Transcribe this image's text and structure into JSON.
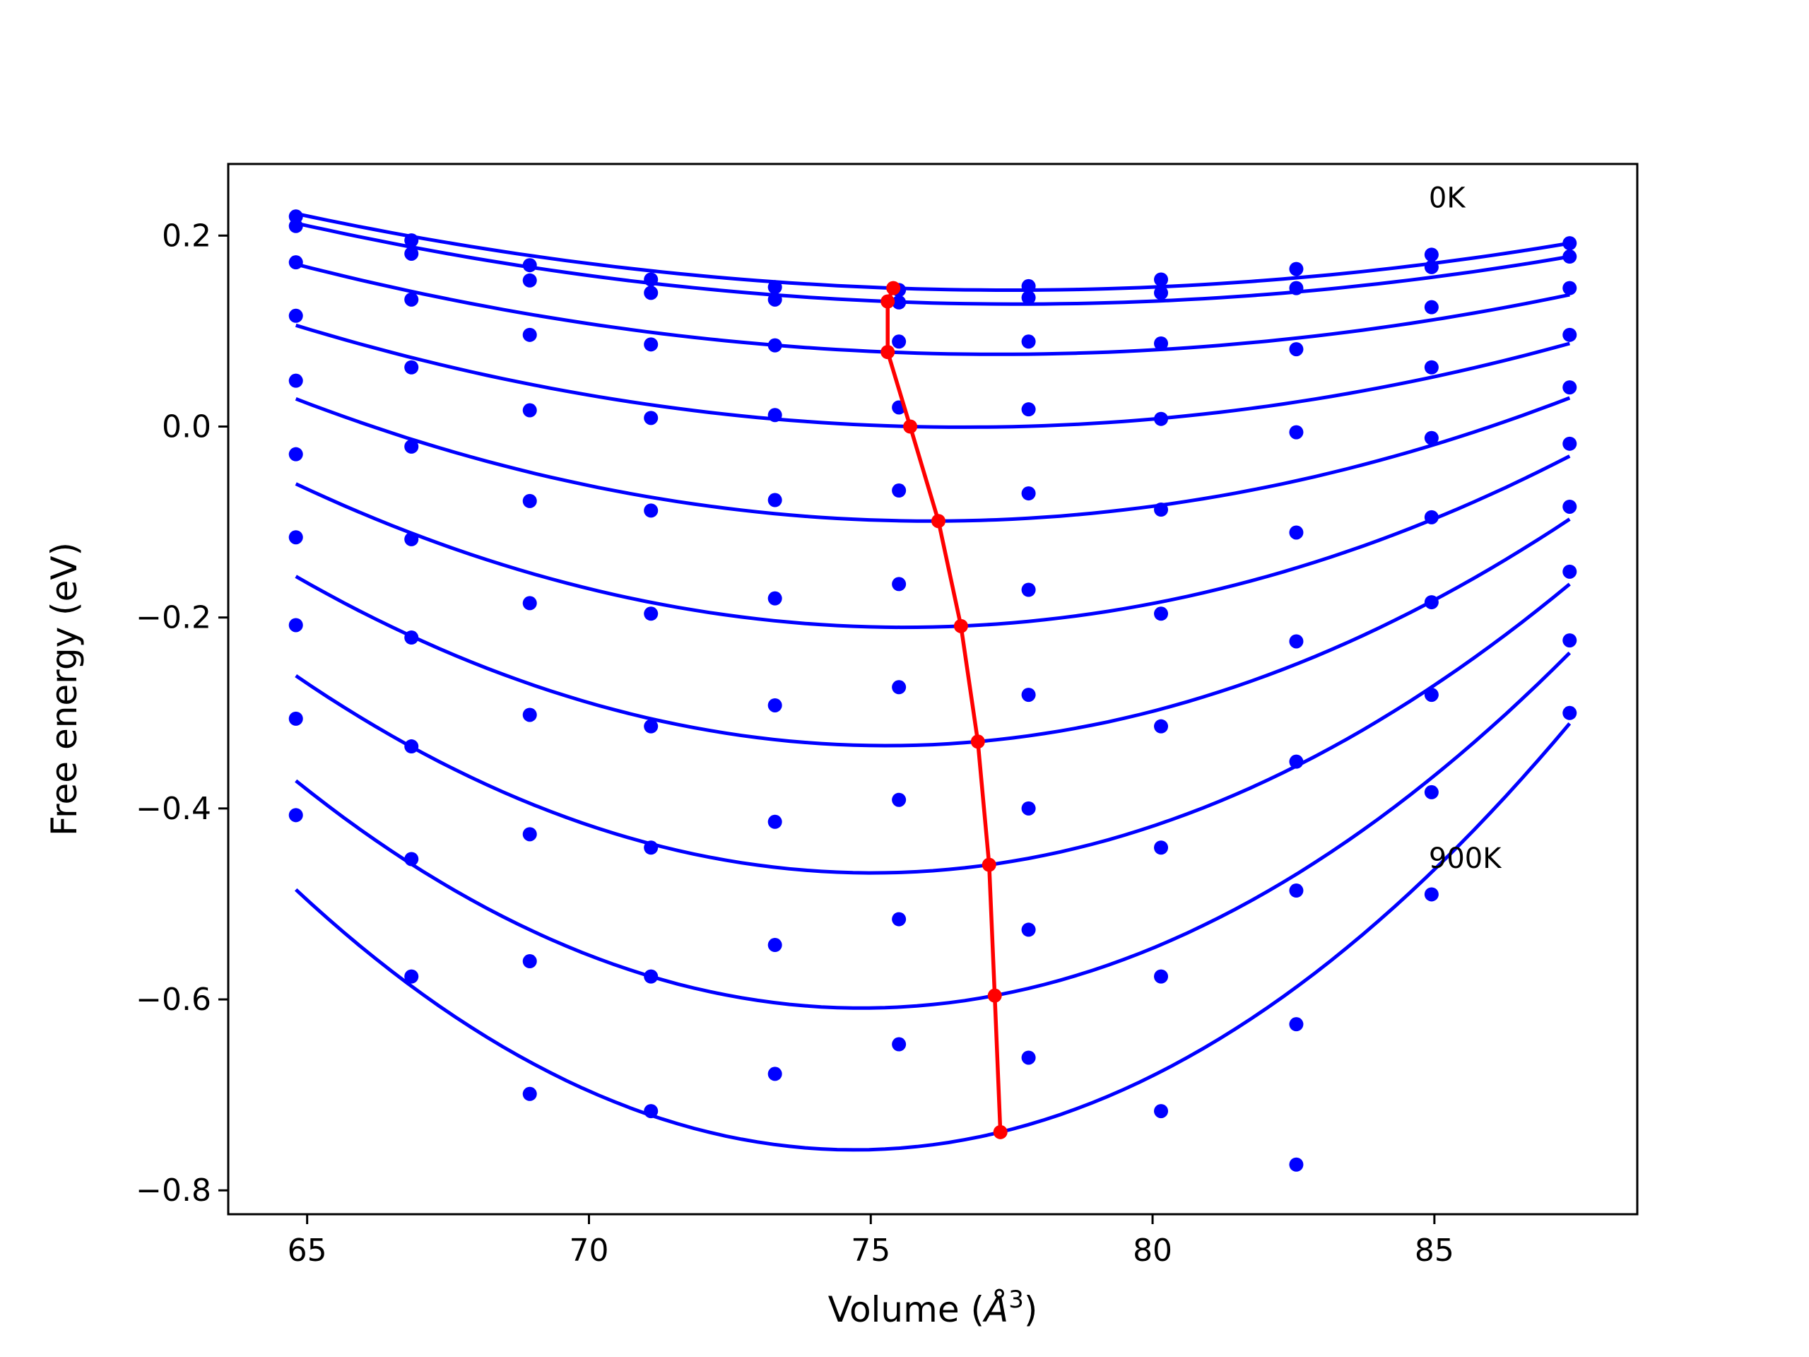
{
  "chart_data": {
    "type": "scatter",
    "title": "",
    "xlabel": "Volume (Å³)",
    "xlabel_main": "Volume (",
    "xlabel_symbol": "Å",
    "xlabel_exp": "3",
    "xlabel_close": ")",
    "ylabel": "Free energy (eV)",
    "xlim": [
      63.6,
      88.6
    ],
    "ylim": [
      -0.825,
      0.275
    ],
    "x_ticks": [
      65,
      70,
      75,
      80,
      85
    ],
    "y_ticks": [
      0.2,
      0.0,
      -0.2,
      -0.4,
      -0.6,
      -0.8
    ],
    "x_tick_labels": [
      "65",
      "70",
      "75",
      "80",
      "85"
    ],
    "y_tick_labels": [
      "0.2",
      "0.0",
      "−0.2",
      "−0.4",
      "−0.6",
      "−0.8"
    ],
    "grid": false,
    "colors": {
      "data": "#0000ff",
      "minimum": "#ff0000",
      "frame": "#000000"
    },
    "volumes": [
      64.8,
      66.85,
      68.95,
      71.1,
      73.3,
      75.5,
      77.8,
      80.15,
      82.55,
      84.95,
      87.4
    ],
    "fit_range": [
      64.8,
      87.4
    ],
    "series": [
      {
        "temperature_label": "0K",
        "points": [
          0.22,
          0.195,
          0.169,
          0.154,
          0.146,
          0.143,
          0.147,
          0.154,
          0.165,
          0.18,
          0.192
        ],
        "fit": {
          "x": [
            64.8,
            75.4,
            87.4
          ],
          "y": [
            0.223,
            0.145,
            0.192
          ]
        },
        "minimum": [
          75.4,
          0.145
        ]
      },
      {
        "temperature_label": "",
        "points": [
          0.21,
          0.181,
          0.153,
          0.14,
          0.133,
          0.13,
          0.135,
          0.14,
          0.145,
          0.167,
          0.178
        ],
        "fit": {
          "x": [
            64.8,
            75.3,
            87.4
          ],
          "y": [
            0.213,
            0.131,
            0.178
          ]
        },
        "minimum": [
          75.3,
          0.131
        ]
      },
      {
        "temperature_label": "",
        "points": [
          0.172,
          0.133,
          0.096,
          0.086,
          0.085,
          0.089,
          0.089,
          0.087,
          0.081,
          0.125,
          0.145
        ],
        "fit": {
          "x": [
            64.8,
            75.3,
            87.4
          ],
          "y": [
            0.17,
            0.078,
            0.138
          ]
        },
        "minimum": [
          75.3,
          0.078
        ]
      },
      {
        "temperature_label": "",
        "points": [
          0.116,
          0.062,
          0.017,
          0.009,
          0.012,
          0.02,
          0.018,
          0.008,
          -0.006,
          0.062,
          0.096
        ],
        "fit": {
          "x": [
            64.8,
            75.7,
            87.4
          ],
          "y": [
            0.106,
            0.0,
            0.087
          ]
        },
        "minimum": [
          75.7,
          0.0
        ]
      },
      {
        "temperature_label": "",
        "points": [
          0.048,
          -0.021,
          -0.078,
          -0.088,
          -0.077,
          -0.067,
          -0.07,
          -0.087,
          -0.111,
          -0.012,
          0.041
        ],
        "fit": {
          "x": [
            64.8,
            76.2,
            87.4
          ],
          "y": [
            0.029,
            -0.099,
            0.03
          ]
        },
        "minimum": [
          76.2,
          -0.099
        ]
      },
      {
        "temperature_label": "",
        "points": [
          -0.029,
          -0.118,
          -0.185,
          -0.196,
          -0.18,
          -0.165,
          -0.171,
          -0.196,
          -0.225,
          -0.095,
          -0.018
        ],
        "fit": {
          "x": [
            64.8,
            76.6,
            87.4
          ],
          "y": [
            -0.06,
            -0.209,
            -0.031
          ]
        },
        "minimum": [
          76.6,
          -0.209
        ]
      },
      {
        "temperature_label": "",
        "points": [
          -0.116,
          -0.221,
          -0.302,
          -0.314,
          -0.292,
          -0.273,
          -0.281,
          -0.314,
          -0.351,
          -0.184,
          -0.084
        ],
        "fit": {
          "x": [
            64.8,
            76.9,
            87.4
          ],
          "y": [
            -0.157,
            -0.33,
            -0.097
          ]
        },
        "minimum": [
          76.9,
          -0.33
        ]
      },
      {
        "temperature_label": "",
        "points": [
          -0.208,
          -0.335,
          -0.427,
          -0.441,
          -0.414,
          -0.391,
          -0.4,
          -0.441,
          -0.486,
          -0.281,
          -0.152
        ],
        "fit": {
          "x": [
            64.8,
            77.1,
            87.4
          ],
          "y": [
            -0.261,
            -0.459,
            -0.165
          ]
        },
        "minimum": [
          77.1,
          -0.459
        ]
      },
      {
        "temperature_label": "",
        "points": [
          -0.306,
          -0.453,
          -0.56,
          -0.576,
          -0.543,
          -0.516,
          -0.527,
          -0.576,
          -0.626,
          -0.383,
          -0.224
        ],
        "fit": {
          "x": [
            64.8,
            77.2,
            87.4
          ],
          "y": [
            -0.371,
            -0.596,
            -0.237
          ]
        },
        "minimum": [
          77.2,
          -0.596
        ]
      },
      {
        "temperature_label": "900K",
        "points": [
          -0.407,
          -0.576,
          -0.699,
          -0.717,
          -0.678,
          -0.647,
          -0.661,
          -0.717,
          -0.773,
          -0.49,
          -0.3
        ],
        "fit": {
          "x": [
            64.8,
            77.3,
            87.4
          ],
          "y": [
            -0.485,
            -0.739,
            -0.311
          ]
        },
        "minimum": [
          77.3,
          -0.739
        ]
      }
    ],
    "minimum_line": {
      "x": [
        75.4,
        75.3,
        75.3,
        75.7,
        76.2,
        76.6,
        76.9,
        77.1,
        77.2,
        77.3
      ],
      "y": [
        0.145,
        0.131,
        0.078,
        0.0,
        -0.099,
        -0.209,
        -0.33,
        -0.459,
        -0.596,
        -0.739
      ]
    },
    "annotations": [
      {
        "text": "0K",
        "x": 84.9,
        "y": 0.24
      },
      {
        "text": "900K",
        "x": 84.9,
        "y": -0.452
      }
    ]
  }
}
